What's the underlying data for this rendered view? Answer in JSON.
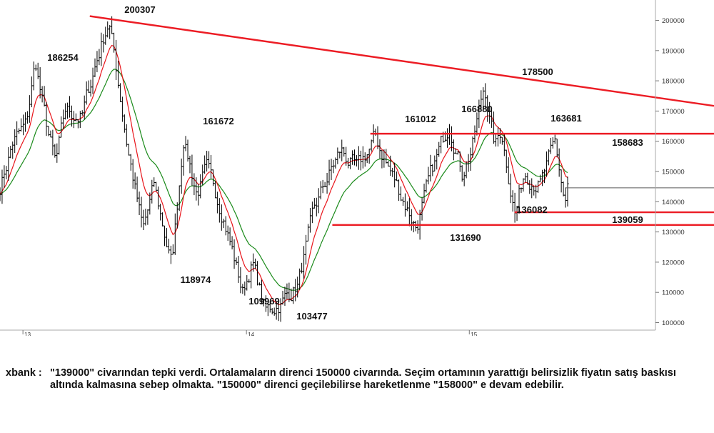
{
  "chart_data": {
    "type": "candlestick",
    "title": "",
    "xlabel": "",
    "ylabel": "",
    "ylim": [
      100000,
      210000
    ],
    "y_ticks": [
      "100000",
      "110000",
      "120000",
      "130000",
      "140000",
      "150000",
      "160000",
      "170000",
      "180000",
      "190000",
      "200000"
    ],
    "x_ticks": [
      {
        "label": "13",
        "t": 0.035
      },
      {
        "label": "14",
        "t": 0.376
      },
      {
        "label": "15",
        "t": 0.716
      }
    ],
    "annotations": [
      {
        "text": "200307",
        "t": 0.166,
        "value": 200307
      },
      {
        "text": "186254",
        "t": 0.054,
        "value": 186254
      },
      {
        "text": "161672",
        "t": 0.28,
        "value": 161672
      },
      {
        "text": "118974",
        "t": 0.262,
        "value": 118974
      },
      {
        "text": "109969",
        "t": 0.37,
        "value": 109969
      },
      {
        "text": "103477",
        "t": 0.405,
        "value": 103477
      },
      {
        "text": "161012",
        "t": 0.572,
        "value": 161012
      },
      {
        "text": "166880",
        "t": 0.686,
        "value": 166880
      },
      {
        "text": "178500",
        "t": 0.739,
        "value": 178500
      },
      {
        "text": "163681",
        "t": 0.765,
        "value": 163681
      },
      {
        "text": "158683",
        "t": 0.847,
        "value": 158683
      },
      {
        "text": "131690",
        "t": 0.635,
        "value": 131690
      },
      {
        "text": "136082",
        "t": 0.786,
        "value": 136082
      },
      {
        "text": "139059",
        "t": 0.862,
        "value": 139059
      }
    ],
    "trendlines": [
      {
        "kind": "downtrend",
        "from": {
          "t": 0.137,
          "value": 201400
        },
        "to": {
          "t": 1.0,
          "value": 171000
        }
      },
      {
        "kind": "resistance",
        "from": {
          "t": 0.565,
          "value": 162500
        },
        "to": {
          "t": 1.0,
          "value": 162500
        }
      },
      {
        "kind": "support",
        "from": {
          "t": 0.785,
          "value": 136500
        },
        "to": {
          "t": 1.0,
          "value": 136500
        }
      },
      {
        "kind": "support",
        "from": {
          "t": 0.507,
          "value": 132300
        },
        "to": {
          "t": 1.0,
          "value": 132300
        }
      },
      {
        "kind": "last-price",
        "from": {
          "t": 0.862,
          "value": 144600
        },
        "to": {
          "t": 1.0,
          "value": 144600
        }
      }
    ],
    "waypoints": [
      {
        "t": 0.0,
        "value": 145000
      },
      {
        "t": 0.02,
        "value": 160000
      },
      {
        "t": 0.04,
        "value": 165000
      },
      {
        "t": 0.054,
        "value": 186254
      },
      {
        "t": 0.07,
        "value": 166000
      },
      {
        "t": 0.085,
        "value": 152000
      },
      {
        "t": 0.1,
        "value": 170000
      },
      {
        "t": 0.125,
        "value": 168000
      },
      {
        "t": 0.145,
        "value": 185000
      },
      {
        "t": 0.166,
        "value": 200307
      },
      {
        "t": 0.18,
        "value": 180000
      },
      {
        "t": 0.195,
        "value": 158000
      },
      {
        "t": 0.218,
        "value": 130000
      },
      {
        "t": 0.235,
        "value": 145000
      },
      {
        "t": 0.262,
        "value": 118974
      },
      {
        "t": 0.28,
        "value": 161672
      },
      {
        "t": 0.3,
        "value": 143000
      },
      {
        "t": 0.315,
        "value": 150000
      },
      {
        "t": 0.34,
        "value": 137000
      },
      {
        "t": 0.37,
        "value": 109969
      },
      {
        "t": 0.385,
        "value": 120000
      },
      {
        "t": 0.405,
        "value": 103477
      },
      {
        "t": 0.43,
        "value": 107000
      },
      {
        "t": 0.455,
        "value": 113000
      },
      {
        "t": 0.48,
        "value": 137000
      },
      {
        "t": 0.5,
        "value": 148000
      },
      {
        "t": 0.52,
        "value": 157000
      },
      {
        "t": 0.545,
        "value": 150000
      },
      {
        "t": 0.572,
        "value": 161012
      },
      {
        "t": 0.6,
        "value": 148000
      },
      {
        "t": 0.635,
        "value": 131690
      },
      {
        "t": 0.66,
        "value": 150000
      },
      {
        "t": 0.686,
        "value": 166880
      },
      {
        "t": 0.705,
        "value": 150000
      },
      {
        "t": 0.72,
        "value": 158000
      },
      {
        "t": 0.739,
        "value": 178500
      },
      {
        "t": 0.755,
        "value": 158000
      },
      {
        "t": 0.765,
        "value": 163681
      },
      {
        "t": 0.786,
        "value": 136082
      },
      {
        "t": 0.8,
        "value": 150000
      },
      {
        "t": 0.825,
        "value": 146000
      },
      {
        "t": 0.847,
        "value": 158683
      },
      {
        "t": 0.862,
        "value": 139059
      },
      {
        "t": 0.866,
        "value": 144600
      }
    ],
    "series": [
      {
        "kind": "price",
        "color": "#000000"
      },
      {
        "kind": "moving-average-short",
        "color": "#e8141a"
      },
      {
        "kind": "moving-average-long",
        "color": "#1a8a1a"
      }
    ],
    "colors": {
      "trendline": "#ec1c24",
      "last_price": "#5a5a5a",
      "axis": "#a9a9a9"
    }
  },
  "commentary": {
    "label": "xbank :",
    "text": "\"139000\" civarından tepki verdi. Ortalamaların direnci 150000 civarında. Seçim ortamının yarattığı belirsizlik fiyatın satış baskısı altında kalmasına sebep olmakta. \"150000\" direnci geçilebilirse hareketlenme \"158000\" e devam edebilir."
  }
}
